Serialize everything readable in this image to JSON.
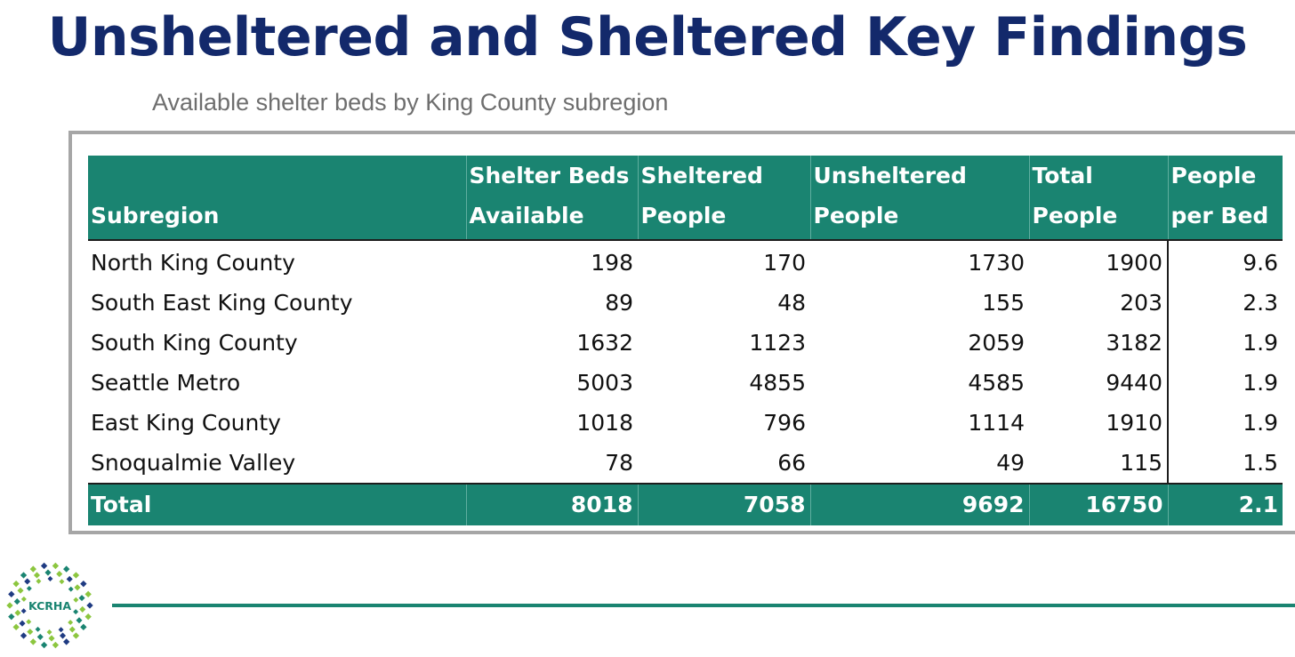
{
  "header": {
    "title": "Unsheltered and Sheltered Key Findings",
    "subtitle": "Available shelter beds by King County subregion"
  },
  "table": {
    "columns": [
      [
        "Subregion"
      ],
      [
        "Shelter Beds",
        "Available"
      ],
      [
        "Sheltered",
        "People"
      ],
      [
        "Unsheltered",
        "People"
      ],
      [
        "Total",
        "People"
      ],
      [
        "People",
        "per Bed"
      ]
    ],
    "rows": [
      [
        "North King County",
        "198",
        "170",
        "1730",
        "1900",
        "9.6"
      ],
      [
        "South East King County",
        "89",
        "48",
        "155",
        "203",
        "2.3"
      ],
      [
        "South King County",
        "1632",
        "1123",
        "2059",
        "3182",
        "1.9"
      ],
      [
        "Seattle Metro",
        "5003",
        "4855",
        "4585",
        "9440",
        "1.9"
      ],
      [
        "East King County",
        "1018",
        "796",
        "1114",
        "1910",
        "1.9"
      ],
      [
        "Snoqualmie Valley",
        "78",
        "66",
        "49",
        "115",
        "1.5"
      ]
    ],
    "total": [
      "Total",
      "8018",
      "7058",
      "9692",
      "16750",
      "2.1"
    ]
  },
  "logo": {
    "text": "KCRHA",
    "icon": "kcrha-logo-icon"
  },
  "colors": {
    "title": "#13296b",
    "header_bg": "#1a8471",
    "rule": "#1a8471",
    "logo_navy": "#1f3b82",
    "logo_green": "#8cc63f",
    "logo_teal": "#1a8471"
  }
}
